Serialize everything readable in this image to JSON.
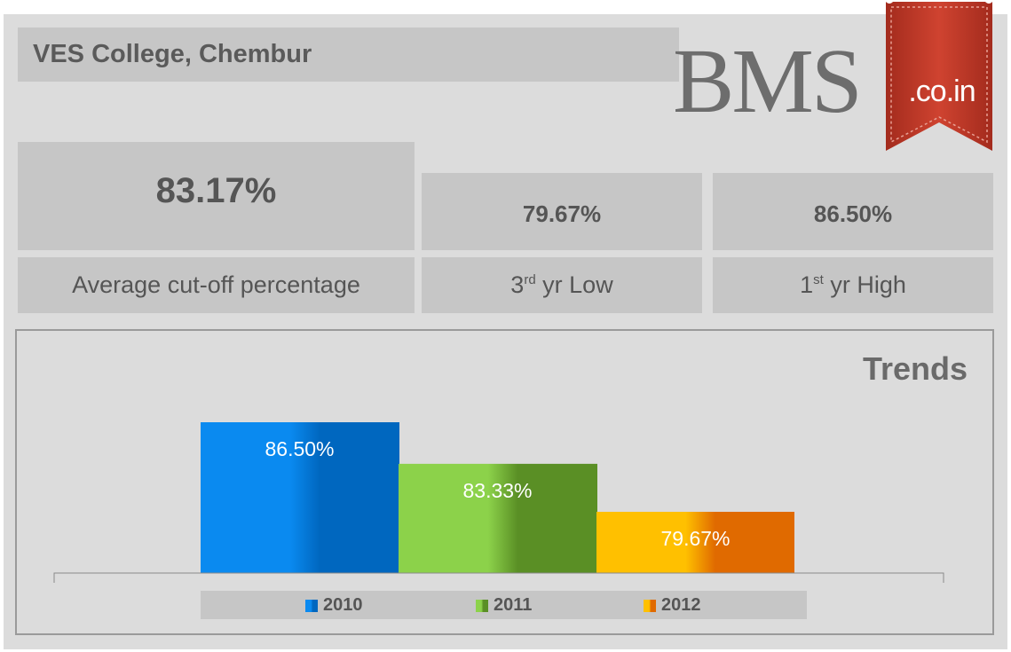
{
  "header": {
    "title": "VES College, Chembur"
  },
  "logo": {
    "main_text": "BMS",
    "ribbon_text": ".co.in",
    "ribbon_color": "#c0392b"
  },
  "stats": {
    "average": {
      "value": "83.17%",
      "label": "Average cut-off percentage"
    },
    "low": {
      "value": "79.67%",
      "label_prefix": "3",
      "label_sup": "rd",
      "label_suffix": " yr Low"
    },
    "high": {
      "value": "86.50%",
      "label_prefix": "1",
      "label_sup": "st",
      "label_suffix": " yr High"
    }
  },
  "chart_data": {
    "type": "bar",
    "title": "Trends",
    "categories": [
      "2010",
      "2011",
      "2012"
    ],
    "values": [
      86.5,
      83.33,
      79.67
    ],
    "value_labels": [
      "86.50%",
      "83.33%",
      "79.67%"
    ],
    "colors": [
      "#0a7fdc",
      "#6aaa2e",
      "#f6a800"
    ],
    "ylim": [
      75,
      90
    ],
    "xlabel": "",
    "ylabel": "",
    "grid": false,
    "legend_position": "bottom"
  }
}
